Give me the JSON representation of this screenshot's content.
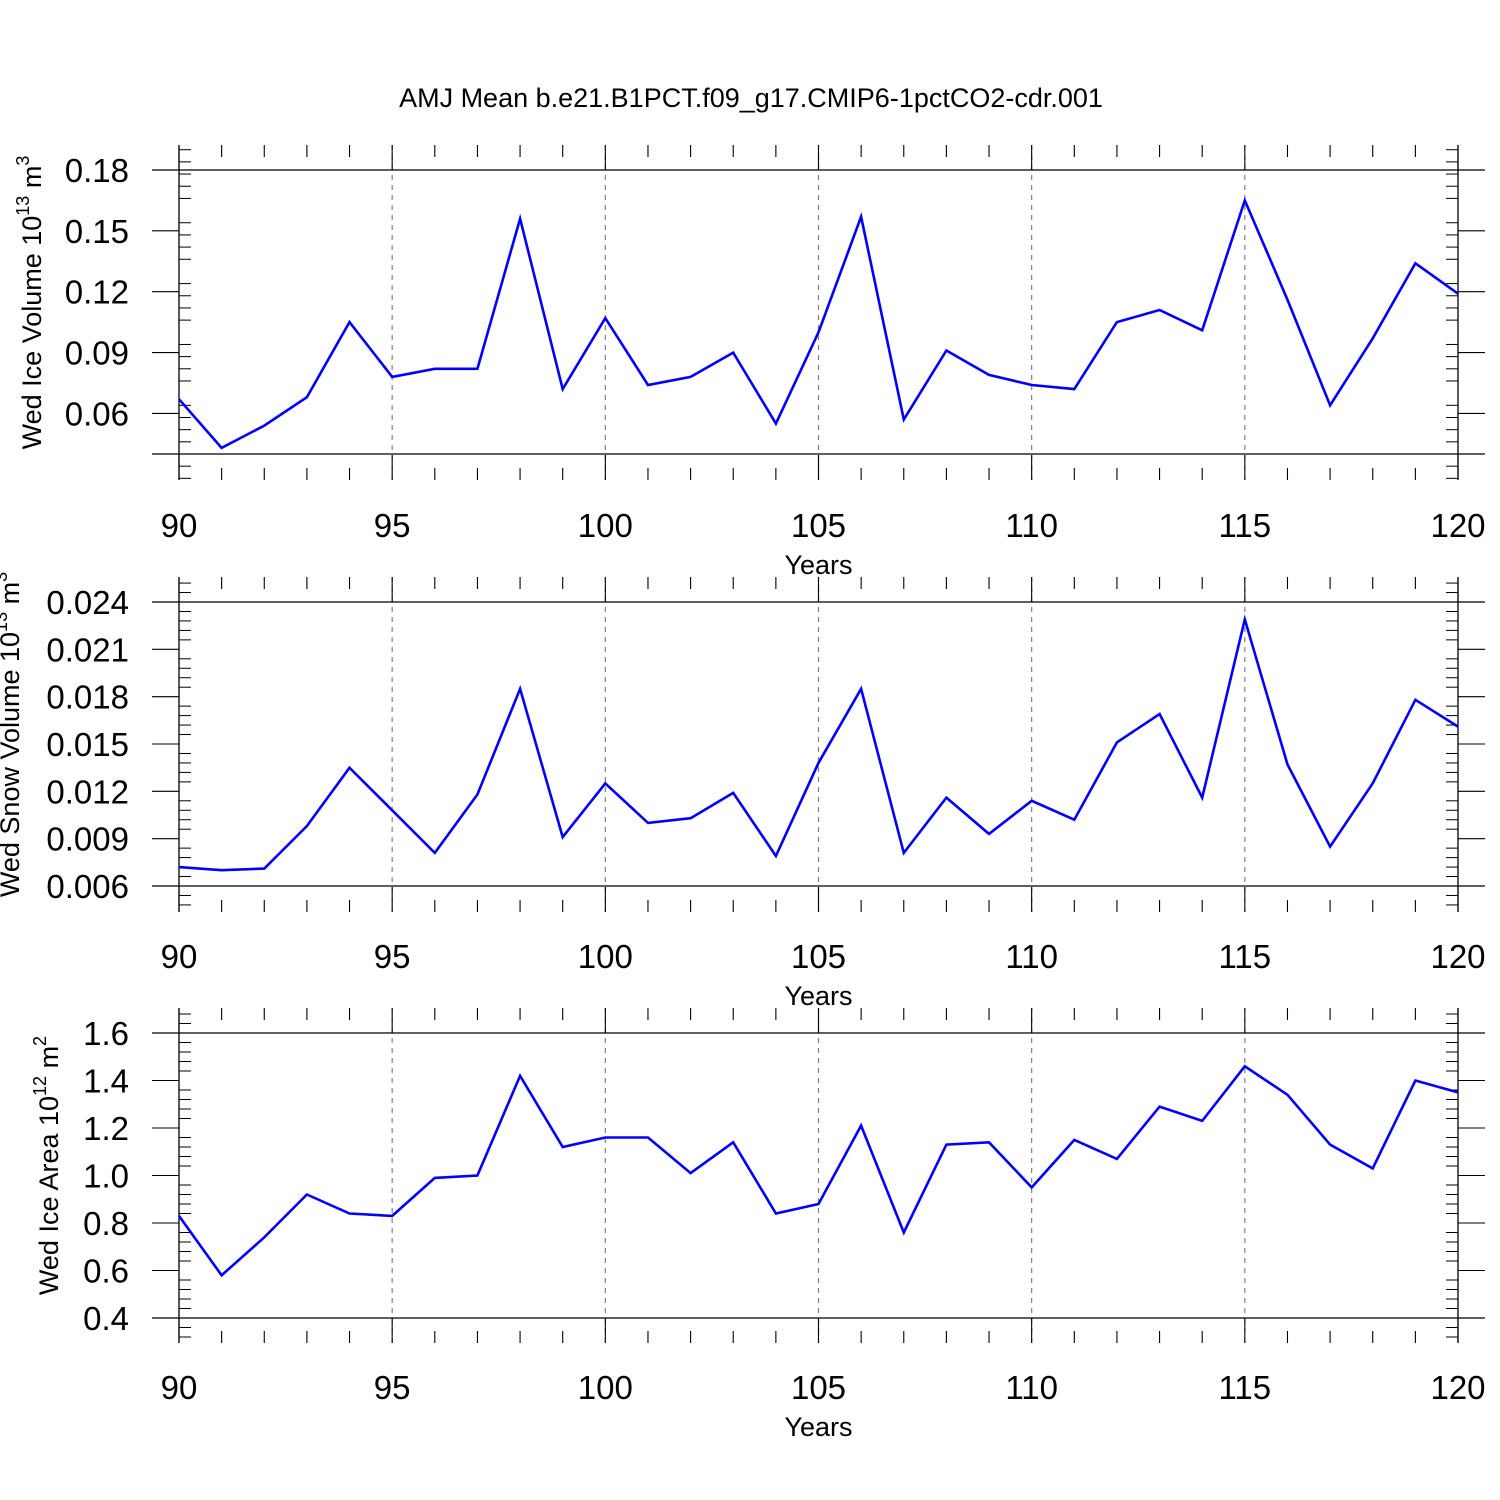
{
  "figure": {
    "title": "AMJ Mean b.e21.B1PCT.f09_g17.CMIP6-1pctCO2-cdr.001",
    "line_color": "#0000ff",
    "grid_color": "#808080"
  },
  "chart_data": [
    {
      "type": "line",
      "xlabel": "Years",
      "ylabel": {
        "text": "Wed Ice Volume 10",
        "exp": "13",
        "unit": " m",
        "unit_exp": "3"
      },
      "xlim": [
        90,
        120
      ],
      "ylim": [
        0.04,
        0.18
      ],
      "xticks": [
        90,
        95,
        100,
        105,
        110,
        115,
        120
      ],
      "xtick_labels": [
        "90",
        "95",
        "100",
        "105",
        "110",
        "115",
        "120"
      ],
      "yticks": [
        0.06,
        0.09,
        0.12,
        0.15,
        0.18
      ],
      "ytick_labels": [
        "0.06",
        "0.09",
        "0.12",
        "0.15",
        "0.18"
      ],
      "grid": "vertical dashed at major x ticks",
      "x": [
        90,
        91,
        92,
        93,
        94,
        95,
        96,
        97,
        98,
        99,
        100,
        101,
        102,
        103,
        104,
        105,
        106,
        107,
        108,
        109,
        110,
        111,
        112,
        113,
        114,
        115,
        116,
        117,
        118,
        119,
        120
      ],
      "y": [
        0.067,
        0.043,
        0.054,
        0.068,
        0.105,
        0.078,
        0.082,
        0.082,
        0.156,
        0.072,
        0.107,
        0.074,
        0.078,
        0.09,
        0.055,
        0.1,
        0.157,
        0.057,
        0.091,
        0.079,
        0.074,
        0.072,
        0.105,
        0.111,
        0.101,
        0.165,
        0.116,
        0.064,
        0.097,
        0.134,
        0.119
      ]
    },
    {
      "type": "line",
      "xlabel": "Years",
      "ylabel": {
        "text": "Wed Snow Volume 10",
        "exp": "13",
        "unit": " m",
        "unit_exp": "3"
      },
      "xlim": [
        90,
        120
      ],
      "ylim": [
        0.006,
        0.024
      ],
      "xticks": [
        90,
        95,
        100,
        105,
        110,
        115,
        120
      ],
      "xtick_labels": [
        "90",
        "95",
        "100",
        "105",
        "110",
        "115",
        "120"
      ],
      "yticks": [
        0.006,
        0.009,
        0.012,
        0.015,
        0.018,
        0.021,
        0.024
      ],
      "ytick_labels": [
        "0.006",
        "0.009",
        "0.012",
        "0.015",
        "0.018",
        "0.021",
        "0.024"
      ],
      "grid": "vertical dashed at major x ticks",
      "x": [
        90,
        91,
        92,
        93,
        94,
        95,
        96,
        97,
        98,
        99,
        100,
        101,
        102,
        103,
        104,
        105,
        106,
        107,
        108,
        109,
        110,
        111,
        112,
        113,
        114,
        115,
        116,
        117,
        118,
        119,
        120
      ],
      "y": [
        0.0072,
        0.007,
        0.0071,
        0.0098,
        0.0135,
        0.0108,
        0.0081,
        0.0118,
        0.0185,
        0.0091,
        0.0125,
        0.01,
        0.0103,
        0.0119,
        0.0079,
        0.0138,
        0.0185,
        0.0081,
        0.0116,
        0.0093,
        0.0114,
        0.0102,
        0.0151,
        0.0169,
        0.0116,
        0.0229,
        0.0137,
        0.0085,
        0.0125,
        0.0178,
        0.0161
      ]
    },
    {
      "type": "line",
      "xlabel": "Years",
      "ylabel": {
        "text": "Wed Ice Area 10",
        "exp": "12",
        "unit": " m",
        "unit_exp": "2"
      },
      "xlim": [
        90,
        120
      ],
      "ylim": [
        0.4,
        1.6
      ],
      "xticks": [
        90,
        95,
        100,
        105,
        110,
        115,
        120
      ],
      "xtick_labels": [
        "90",
        "95",
        "100",
        "105",
        "110",
        "115",
        "120"
      ],
      "yticks": [
        0.4,
        0.6,
        0.8,
        1.0,
        1.2,
        1.4,
        1.6
      ],
      "ytick_labels": [
        "0.4",
        "0.6",
        "0.8",
        "1.0",
        "1.2",
        "1.4",
        "1.6"
      ],
      "grid": "vertical dashed at major x ticks",
      "x": [
        90,
        91,
        92,
        93,
        94,
        95,
        96,
        97,
        98,
        99,
        100,
        101,
        102,
        103,
        104,
        105,
        106,
        107,
        108,
        109,
        110,
        111,
        112,
        113,
        114,
        115,
        116,
        117,
        118,
        119,
        120
      ],
      "y": [
        0.83,
        0.58,
        0.74,
        0.92,
        0.84,
        0.83,
        0.99,
        1.0,
        1.42,
        1.12,
        1.16,
        1.16,
        1.01,
        1.14,
        0.84,
        0.88,
        1.21,
        0.76,
        1.13,
        1.14,
        0.95,
        1.15,
        1.07,
        1.29,
        1.23,
        1.46,
        1.34,
        1.13,
        1.03,
        1.4,
        1.35
      ]
    }
  ]
}
